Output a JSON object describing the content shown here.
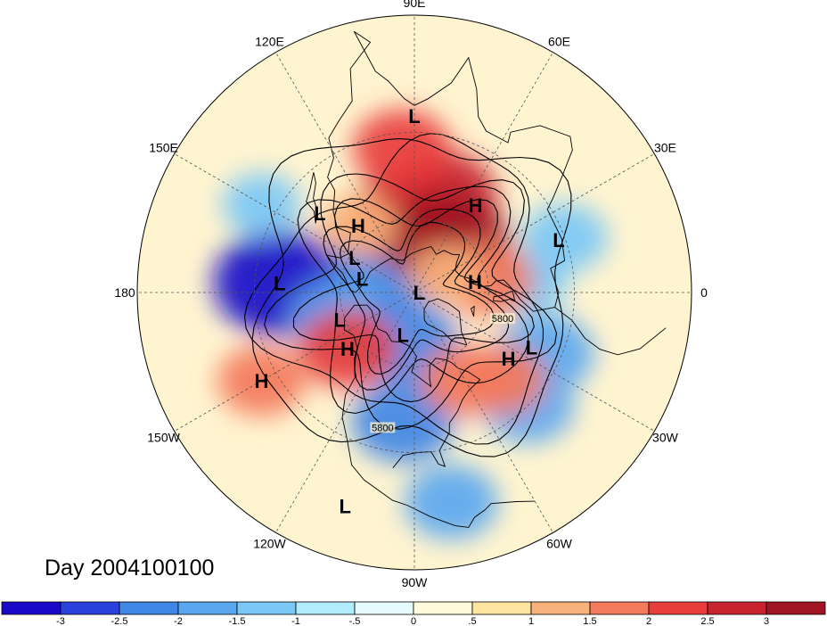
{
  "title": "Day 2004100100",
  "colors": {
    "coast": "#000000",
    "grid": "#555555"
  },
  "longitude_labels": [
    {
      "text": "90E",
      "lon": 90
    },
    {
      "text": "60E",
      "lon": 60
    },
    {
      "text": "30E",
      "lon": 30
    },
    {
      "text": "0",
      "lon": 0
    },
    {
      "text": "30W",
      "lon": -30
    },
    {
      "text": "60W",
      "lon": -60
    },
    {
      "text": "90W",
      "lon": -90
    },
    {
      "text": "120W",
      "lon": -120
    },
    {
      "text": "150W",
      "lon": -150
    },
    {
      "text": "180",
      "lon": 180
    },
    {
      "text": "150E",
      "lon": 150
    },
    {
      "text": "120E",
      "lon": 120
    }
  ],
  "pressure_centers": [
    {
      "label": "L",
      "lat": 25,
      "lon": 90
    },
    {
      "label": "H",
      "lat": 55,
      "lon": 130
    },
    {
      "label": "L",
      "lat": 42,
      "lon": 140
    },
    {
      "label": "L",
      "lat": 62,
      "lon": 150
    },
    {
      "label": "L",
      "lat": 68,
      "lon": 165
    },
    {
      "label": "L",
      "lat": 38,
      "lon": 176
    },
    {
      "label": "L",
      "lat": 58,
      "lon": -160
    },
    {
      "label": "H",
      "lat": 55,
      "lon": -140
    },
    {
      "label": "H",
      "lat": 25,
      "lon": -150
    },
    {
      "label": "L",
      "lat": 72,
      "lon": -105
    },
    {
      "label": "L",
      "lat": 88,
      "lon": 0
    },
    {
      "label": "H",
      "lat": 65,
      "lon": 10
    },
    {
      "label": "H",
      "lat": 48,
      "lon": 55
    },
    {
      "label": "L",
      "lat": 32,
      "lon": 20
    },
    {
      "label": "H",
      "lat": 45,
      "lon": -35
    },
    {
      "label": "L",
      "lat": 40,
      "lon": -25
    },
    {
      "label": "L",
      "lat": 12,
      "lon": -108
    }
  ],
  "contour_labels": [
    {
      "text": "5800",
      "lat": 53,
      "lon": -18
    },
    {
      "text": "5800",
      "lat": 36,
      "lon": -103
    }
  ],
  "colorbar": {
    "labels": [
      "-3",
      "-2.5",
      "-2",
      "-1.5",
      "-1",
      "-.5",
      "0",
      ".5",
      "1",
      "1.5",
      "2",
      "2.5",
      "3"
    ],
    "colors": [
      "#1a08c9",
      "#2a41db",
      "#3f86e5",
      "#5aa7f0",
      "#7bc8f6",
      "#b0ecfa",
      "#e6fbfd",
      "#fffbdb",
      "#ffe4a0",
      "#f8b27b",
      "#f37a5c",
      "#e83d3c",
      "#c82430",
      "#a01424"
    ]
  },
  "chart_data": {
    "type": "heatmap",
    "title": "Day 2004100100",
    "projection": "polar-stereographic-north",
    "contour_values": [
      5800
    ],
    "color_levels": [
      -3,
      -2.5,
      -2,
      -1.5,
      -1,
      -0.5,
      0,
      0.5,
      1,
      1.5,
      2,
      2.5,
      3
    ],
    "anomaly_centers": [
      {
        "lat": 38,
        "lon": 176,
        "value": -3.4
      },
      {
        "lat": 75,
        "lon": 140,
        "value": -2.4
      },
      {
        "lat": 58,
        "lon": -160,
        "value": -2.0
      },
      {
        "lat": 70,
        "lon": -100,
        "value": -2.2
      },
      {
        "lat": 40,
        "lon": -95,
        "value": -2.2
      },
      {
        "lat": 15,
        "lon": -80,
        "value": -1.8
      },
      {
        "lat": 35,
        "lon": -25,
        "value": -2.0
      },
      {
        "lat": 30,
        "lon": -45,
        "value": -1.8
      },
      {
        "lat": 30,
        "lon": 20,
        "value": -1.5
      },
      {
        "lat": 45,
        "lon": 5,
        "value": -1.2
      },
      {
        "lat": 25,
        "lon": 150,
        "value": -1.2
      },
      {
        "lat": 60,
        "lon": 95,
        "value": 2.8
      },
      {
        "lat": 50,
        "lon": 75,
        "value": 2.6
      },
      {
        "lat": 35,
        "lon": 95,
        "value": 2.0
      },
      {
        "lat": 65,
        "lon": 55,
        "value": 3.0
      },
      {
        "lat": 60,
        "lon": 10,
        "value": 1.8
      },
      {
        "lat": 55,
        "lon": -140,
        "value": 2.0
      },
      {
        "lat": 25,
        "lon": -150,
        "value": 1.6
      },
      {
        "lat": 42,
        "lon": -45,
        "value": 1.6
      },
      {
        "lat": 50,
        "lon": -60,
        "value": 1.6
      },
      {
        "lat": 55,
        "lon": 130,
        "value": 1.2
      },
      {
        "lat": 75,
        "lon": 30,
        "value": 1.0
      }
    ]
  }
}
